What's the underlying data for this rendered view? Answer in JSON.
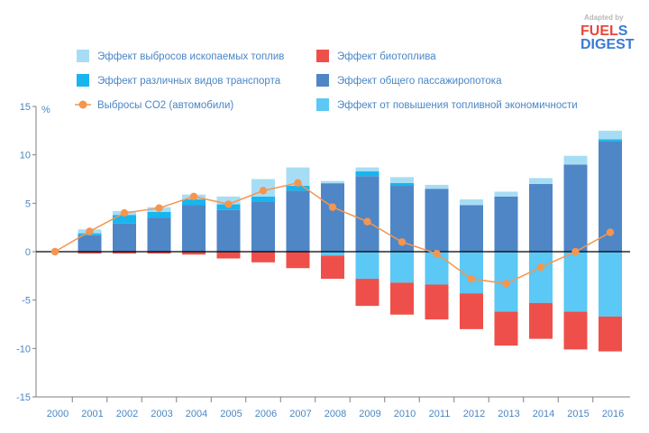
{
  "logo": {
    "adapted": "Adapted by",
    "fuel_prefix": "FUEL",
    "fuel_suffix": "S",
    "digest": "DIGEST"
  },
  "chart_data": {
    "type": "bar",
    "title": "",
    "ylabel": "%",
    "xlabel": "",
    "ylim": [
      -15,
      15
    ],
    "yticks": [
      15,
      10,
      5,
      0,
      -5,
      -10,
      -15
    ],
    "categories": [
      "2000",
      "2001",
      "2002",
      "2003",
      "2004",
      "2005",
      "2006",
      "2007",
      "2008",
      "2009",
      "2010",
      "2011",
      "2012",
      "2013",
      "2014",
      "2015",
      "2016"
    ],
    "stacked": true,
    "series": [
      {
        "key": "passenger",
        "name": "Эффект общего пассажиропотока",
        "color": "#4f86c6",
        "values": [
          0,
          1.7,
          2.9,
          3.5,
          4.8,
          4.3,
          5.2,
          6.3,
          7.0,
          7.8,
          6.8,
          6.5,
          4.8,
          5.7,
          7.0,
          9.0,
          11.4
        ]
      },
      {
        "key": "transport",
        "name": "Эффект различных видов транспорта",
        "color": "#18b5ef",
        "values": [
          0,
          0.2,
          0.9,
          0.6,
          0.6,
          0.6,
          0.5,
          0.5,
          0.1,
          0.5,
          0.3,
          0,
          0,
          0,
          0,
          0,
          0.2
        ]
      },
      {
        "key": "fossil",
        "name": "Эффект выбросов  ископаемых топлив",
        "color": "#a7ddf4",
        "values": [
          0,
          0.4,
          0.4,
          0.5,
          0.5,
          0.8,
          1.8,
          1.9,
          0.2,
          0.4,
          0.6,
          0.4,
          0.6,
          0.5,
          0.6,
          0.9,
          0.9
        ]
      },
      {
        "key": "efficiency",
        "name": "Эффект от повышения топливной экономичности",
        "color": "#5bc8f5",
        "values": [
          0,
          0,
          0,
          0,
          0,
          0,
          0,
          0,
          -0.4,
          -2.8,
          -3.2,
          -3.4,
          -4.3,
          -6.2,
          -5.3,
          -6.2,
          -6.7
        ]
      },
      {
        "key": "biofuel",
        "name": "Эффект биотоплива",
        "color": "#ef4f4a",
        "values": [
          0,
          -0.2,
          -0.2,
          -0.2,
          -0.3,
          -0.7,
          -1.1,
          -1.7,
          -2.4,
          -2.8,
          -3.3,
          -3.6,
          -3.7,
          -3.5,
          -3.7,
          -3.9,
          -3.6
        ]
      }
    ],
    "line": {
      "name": "Выбросы CO2 (автомобили)",
      "color": "#f5954f",
      "values": [
        0,
        2.1,
        4.0,
        4.5,
        5.7,
        4.9,
        6.3,
        7.1,
        4.6,
        3.1,
        1.0,
        -0.2,
        -2.8,
        -3.3,
        -1.6,
        0,
        2.0
      ]
    },
    "legend": [
      {
        "name": "Эффект выбросов  ископаемых топлив",
        "color": "#a7ddf4",
        "marker": "square"
      },
      {
        "name": "Эффект биотоплива",
        "color": "#ef4f4a",
        "marker": "square"
      },
      {
        "name": "Эффект различных видов транспорта",
        "color": "#18b5ef",
        "marker": "square"
      },
      {
        "name": "Эффект общего пассажиропотока",
        "color": "#4f86c6",
        "marker": "square"
      },
      {
        "name": "Выбросы CO2 (автомобили)",
        "color": "#f5954f",
        "marker": "line"
      },
      {
        "name": "Эффект от повышения топливной экономичности",
        "color": "#5bc8f5",
        "marker": "square"
      }
    ]
  }
}
